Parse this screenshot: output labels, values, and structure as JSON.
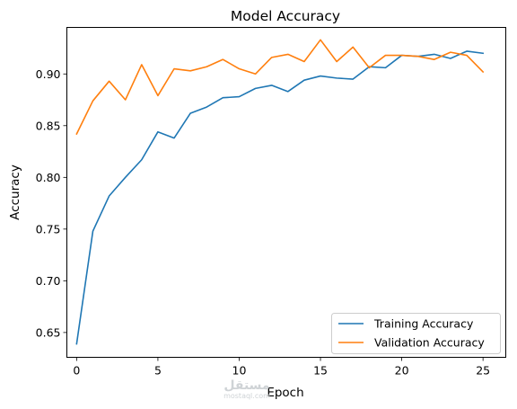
{
  "chart_data": {
    "type": "line",
    "title": "Model Accuracy",
    "xlabel": "Epoch",
    "ylabel": "Accuracy",
    "xlim": [
      -0.6,
      26.4
    ],
    "ylim": [
      0.626,
      0.945
    ],
    "xticks": [
      0,
      5,
      10,
      15,
      20,
      25
    ],
    "xtick_labels": [
      "0",
      "5",
      "10",
      "15",
      "20",
      "25"
    ],
    "yticks": [
      0.65,
      0.7,
      0.75,
      0.8,
      0.85,
      0.9
    ],
    "ytick_labels": [
      "0.65",
      "0.70",
      "0.75",
      "0.80",
      "0.85",
      "0.90"
    ],
    "grid": false,
    "legend_position": "lower-right",
    "x": [
      0,
      1,
      2,
      3,
      4,
      5,
      6,
      7,
      8,
      9,
      10,
      11,
      12,
      13,
      14,
      15,
      16,
      17,
      18,
      19,
      20,
      21,
      22,
      23,
      24,
      25
    ],
    "series": [
      {
        "name": "Training Accuracy",
        "color": "#1f77b4",
        "values": [
          0.639,
          0.748,
          0.782,
          0.8,
          0.817,
          0.844,
          0.838,
          0.862,
          0.868,
          0.877,
          0.878,
          0.886,
          0.889,
          0.883,
          0.894,
          0.898,
          0.896,
          0.895,
          0.907,
          0.906,
          0.918,
          0.917,
          0.919,
          0.915,
          0.922,
          0.92
        ]
      },
      {
        "name": "Validation Accuracy",
        "color": "#ff7f0e",
        "values": [
          0.842,
          0.874,
          0.893,
          0.875,
          0.909,
          0.879,
          0.905,
          0.903,
          0.907,
          0.914,
          0.905,
          0.9,
          0.916,
          0.919,
          0.912,
          0.933,
          0.912,
          0.926,
          0.906,
          0.918,
          0.918,
          0.917,
          0.914,
          0.921,
          0.918,
          0.902
        ]
      }
    ]
  },
  "watermark": {
    "main": "مستقل",
    "sub": "mostaql.com"
  }
}
